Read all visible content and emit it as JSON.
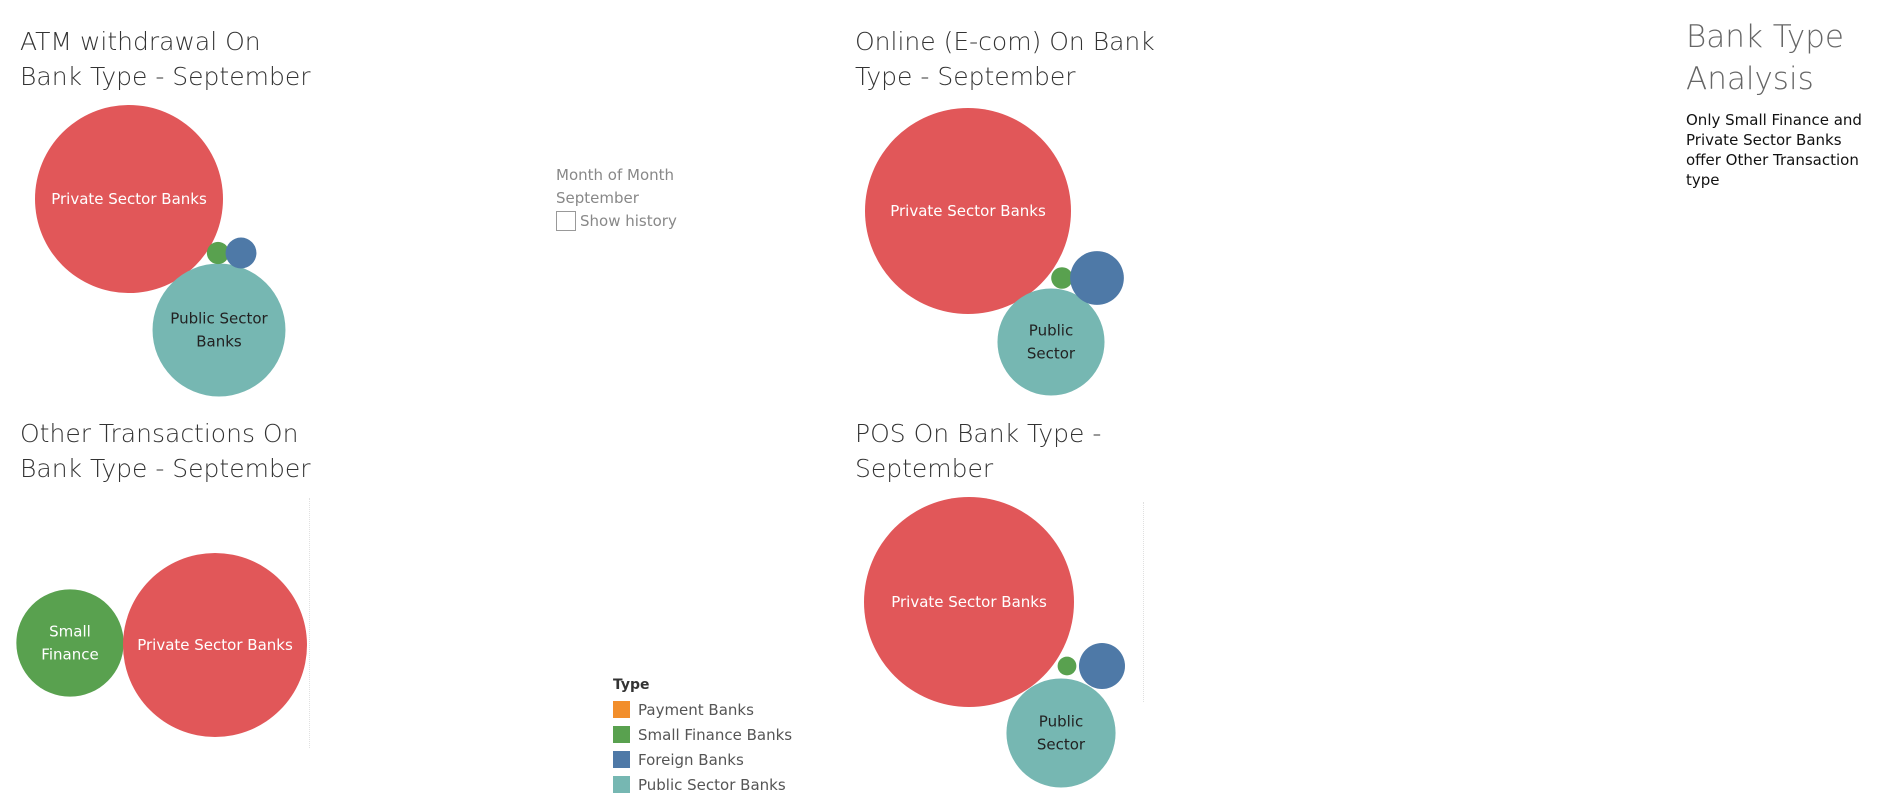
{
  "colors": {
    "Payment Banks": "#f28e2b",
    "Small Finance Banks": "#59a14f",
    "Foreign Banks": "#4e79a7",
    "Public Sector Banks": "#76b7b2",
    "Private Sector Banks": "#e15759"
  },
  "filter": {
    "title_line1": "Month of Month",
    "title_line2": "September",
    "checkbox_label": "Show history"
  },
  "legend": {
    "title": "Type",
    "items": [
      "Payment Banks",
      "Small Finance Banks",
      "Foreign Banks",
      "Public Sector Banks"
    ]
  },
  "side_panel": {
    "title": "Bank Type\nAnalysis",
    "note": "Only Small Finance and Private Sector Banks offer Other Transaction type"
  },
  "chart_data": [
    {
      "type": "bubble",
      "title": "ATM withdrawal On\nBank Type - September",
      "bubbles": [
        {
          "type": "Private Sector Banks",
          "label": "Private Sector Banks",
          "value": 100
        },
        {
          "type": "Public Sector Banks",
          "label": "Public Sector\nBanks",
          "value": 50
        },
        {
          "type": "Small Finance Banks",
          "label": "",
          "value": 1.4
        },
        {
          "type": "Foreign Banks",
          "label": "",
          "value": 2.7
        }
      ]
    },
    {
      "type": "bubble",
      "title": "Online (E-com) On Bank\nType - September",
      "bubbles": [
        {
          "type": "Private Sector Banks",
          "label": "Private Sector Banks",
          "value": 100
        },
        {
          "type": "Public Sector Banks",
          "label": "Public\nSector",
          "value": 27
        },
        {
          "type": "Small Finance Banks",
          "label": "",
          "value": 1.1
        },
        {
          "type": "Foreign Banks",
          "label": "",
          "value": 6.8
        }
      ]
    },
    {
      "type": "bubble",
      "title": "Other Transactions On\nBank Type - September",
      "bubbles": [
        {
          "type": "Small Finance Banks",
          "label": "Small\nFinance",
          "value": 34
        },
        {
          "type": "Private Sector Banks",
          "label": "Private Sector Banks",
          "value": 100
        }
      ]
    },
    {
      "type": "bubble",
      "title": "POS On Bank Type -\nSeptember",
      "bubbles": [
        {
          "type": "Private Sector Banks",
          "label": "Private Sector Banks",
          "value": 100
        },
        {
          "type": "Public Sector Banks",
          "label": "Public\nSector",
          "value": 27
        },
        {
          "type": "Small Finance Banks",
          "label": "",
          "value": 0.8
        },
        {
          "type": "Foreign Banks",
          "label": "",
          "value": 4.8
        }
      ]
    }
  ]
}
